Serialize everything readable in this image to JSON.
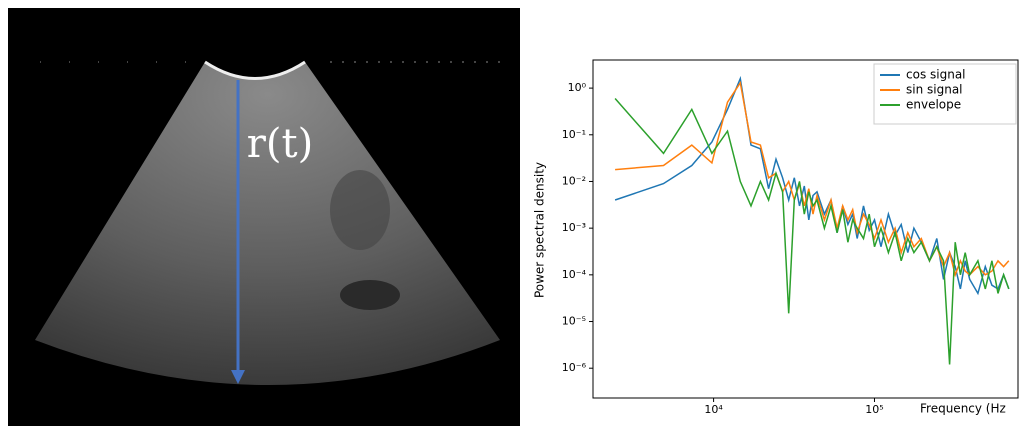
{
  "image": {
    "label": "r(t)"
  },
  "chart_data": {
    "type": "line",
    "xlabel": "Frequency (Hz",
    "ylabel": "Power spectral density",
    "xscale": "log",
    "yscale": "log",
    "legend": "upper right",
    "xlim": [
      1780,
      780000
    ],
    "ylim": [
      2.3e-07,
      4
    ],
    "xticks": [
      {
        "value": 10000,
        "label": "10⁴"
      },
      {
        "value": 100000,
        "label": "10⁵"
      }
    ],
    "yticks": [
      {
        "value": 1,
        "label": "10⁰"
      },
      {
        "value": 0.1,
        "label": "10⁻¹"
      },
      {
        "value": 0.01,
        "label": "10⁻²"
      },
      {
        "value": 0.001,
        "label": "10⁻³"
      },
      {
        "value": 0.0001,
        "label": "10⁻⁴"
      },
      {
        "value": 1e-05,
        "label": "10⁻⁵"
      },
      {
        "value": 1e-06,
        "label": "10⁻⁶"
      }
    ],
    "x": [
      2441,
      4883,
      7324,
      9766,
      12207,
      14648,
      17090,
      19531,
      21973,
      24414,
      26855,
      29297,
      31738,
      34180,
      36621,
      39063,
      41504,
      43945,
      48828,
      53711,
      58594,
      63477,
      68359,
      73242,
      78125,
      85449,
      92773,
      100098,
      109863,
      122070,
      134277,
      146484,
      161133,
      175781,
      195313,
      219727,
      244141,
      268555,
      292969,
      317383,
      341797,
      366211,
      390625,
      439453,
      488281,
      537109,
      585938,
      634766,
      683594
    ],
    "series": [
      {
        "name": "cos signal",
        "color": "#1f77b4",
        "values": [
          0.004,
          0.009,
          0.022,
          0.07,
          0.35,
          1.6,
          0.06,
          0.05,
          0.007,
          0.03,
          0.012,
          0.004,
          0.012,
          0.003,
          0.008,
          0.0015,
          0.005,
          0.006,
          0.002,
          0.004,
          0.0008,
          0.003,
          0.0012,
          0.002,
          0.0006,
          0.003,
          0.0009,
          0.0015,
          0.0004,
          0.002,
          0.0007,
          0.0012,
          0.0003,
          0.001,
          0.0005,
          0.0002,
          0.0006,
          8e-05,
          0.0003,
          0.00015,
          5e-05,
          0.0002,
          8e-05,
          4e-05,
          0.00015,
          6e-05,
          5e-05,
          0.0001,
          5e-05
        ]
      },
      {
        "name": "sin signal",
        "color": "#ff7f0e",
        "values": [
          0.018,
          0.022,
          0.06,
          0.025,
          0.5,
          1.3,
          0.07,
          0.06,
          0.012,
          0.015,
          0.006,
          0.01,
          0.004,
          0.009,
          0.003,
          0.007,
          0.002,
          0.005,
          0.0015,
          0.004,
          0.001,
          0.003,
          0.0015,
          0.0025,
          0.0008,
          0.002,
          0.0012,
          0.0006,
          0.0015,
          0.0005,
          0.001,
          0.0003,
          0.0008,
          0.0004,
          0.0006,
          0.0002,
          0.0004,
          0.00015,
          0.0003,
          0.0001,
          0.0002,
          0.00012,
          0.0001,
          0.00015,
          0.0001,
          0.00012,
          0.0002,
          0.00015,
          0.0002
        ]
      },
      {
        "name": "envelope",
        "color": "#2ca02c",
        "values": [
          0.6,
          0.04,
          0.35,
          0.04,
          0.12,
          0.01,
          0.003,
          0.01,
          0.004,
          0.015,
          0.006,
          1.5e-05,
          0.004,
          0.01,
          0.002,
          0.006,
          0.003,
          0.004,
          0.001,
          0.003,
          0.0008,
          0.0025,
          0.0005,
          0.0015,
          0.001,
          0.0006,
          0.002,
          0.0004,
          0.001,
          0.0003,
          0.0008,
          0.0002,
          0.0006,
          0.0003,
          0.0005,
          0.0002,
          0.0004,
          0.0002,
          1.2e-06,
          0.0005,
          0.0001,
          0.0003,
          0.0001,
          0.0002,
          5e-05,
          0.0002,
          4e-05,
          0.0001,
          5e-05
        ]
      }
    ]
  }
}
